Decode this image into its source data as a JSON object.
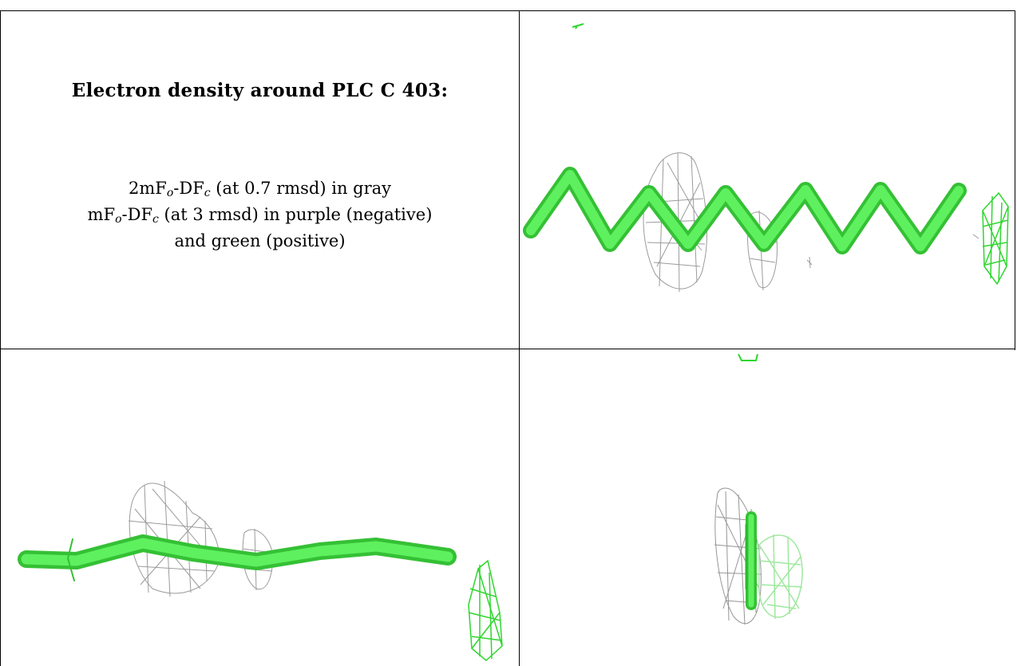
{
  "title": "Electron density around PLC C 403:",
  "legend": {
    "line1_prefix": "2mF",
    "line1_sub_o": "o",
    "line1_mid": "-DF",
    "line1_sub_c": "c",
    "line1_suffix": " (at 0.7 rmsd) in gray",
    "line2_prefix": "mF",
    "line2_sub_o": "o",
    "line2_mid": "-DF",
    "line2_sub_c": "c",
    "line2_suffix": " (at 3 rmsd) in purple (negative)",
    "line3": "and green (positive)"
  },
  "colors": {
    "ligand": "#4ee04e",
    "ligand_dark": "#35c035",
    "density_gray": "#8a8a8a",
    "density_green": "#2fd62f",
    "density_green_faint": "#9fe89f"
  },
  "views": [
    {
      "name": "top-right",
      "icons": [
        "ligand-stick",
        "gray-mesh",
        "green-mesh"
      ]
    },
    {
      "name": "bottom-left",
      "icons": [
        "ligand-stick",
        "gray-mesh",
        "green-mesh"
      ]
    },
    {
      "name": "bottom-right",
      "icons": [
        "ligand-stick",
        "gray-mesh",
        "green-mesh"
      ]
    }
  ]
}
